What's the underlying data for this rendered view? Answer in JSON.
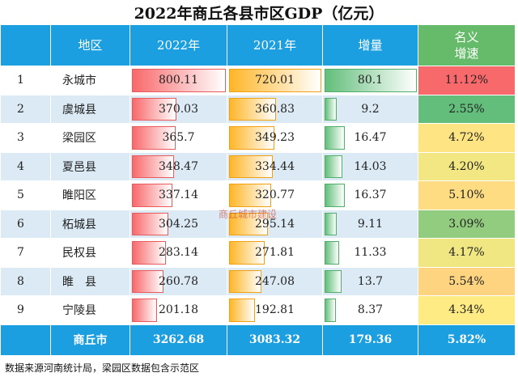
{
  "title": "2022年商丘各县市区GDP（亿元）",
  "header": [
    "地区",
    "2022年",
    "2021年",
    "增量",
    "名义\n增速"
  ],
  "rows": [
    [
      1,
      "永城市",
      800.11,
      720.01,
      80.1,
      "11.12%"
    ],
    [
      2,
      "虞城县",
      370.03,
      360.83,
      9.2,
      "2.55%"
    ],
    [
      3,
      "梁园区",
      365.7,
      349.23,
      16.47,
      "4.72%"
    ],
    [
      4,
      "夏邑县",
      348.47,
      334.44,
      14.03,
      "4.20%"
    ],
    [
      5,
      "睢阳区",
      337.14,
      320.77,
      16.37,
      "5.10%"
    ],
    [
      6,
      "柘城县",
      304.25,
      295.14,
      9.11,
      "3.09%"
    ],
    [
      7,
      "民权县",
      283.14,
      271.81,
      11.33,
      "4.17%"
    ],
    [
      8,
      "睢　县",
      260.78,
      247.08,
      13.7,
      "5.54%"
    ],
    [
      9,
      "宁陵县",
      201.18,
      192.81,
      8.37,
      "4.34%"
    ]
  ],
  "total": [
    "商丘市",
    3262.68,
    3083.32,
    179.36,
    "5.82%"
  ],
  "watermark": "商丘城市建设",
  "footnote": "数据来源河南统计局，梁园区数据包含示范区"
}
